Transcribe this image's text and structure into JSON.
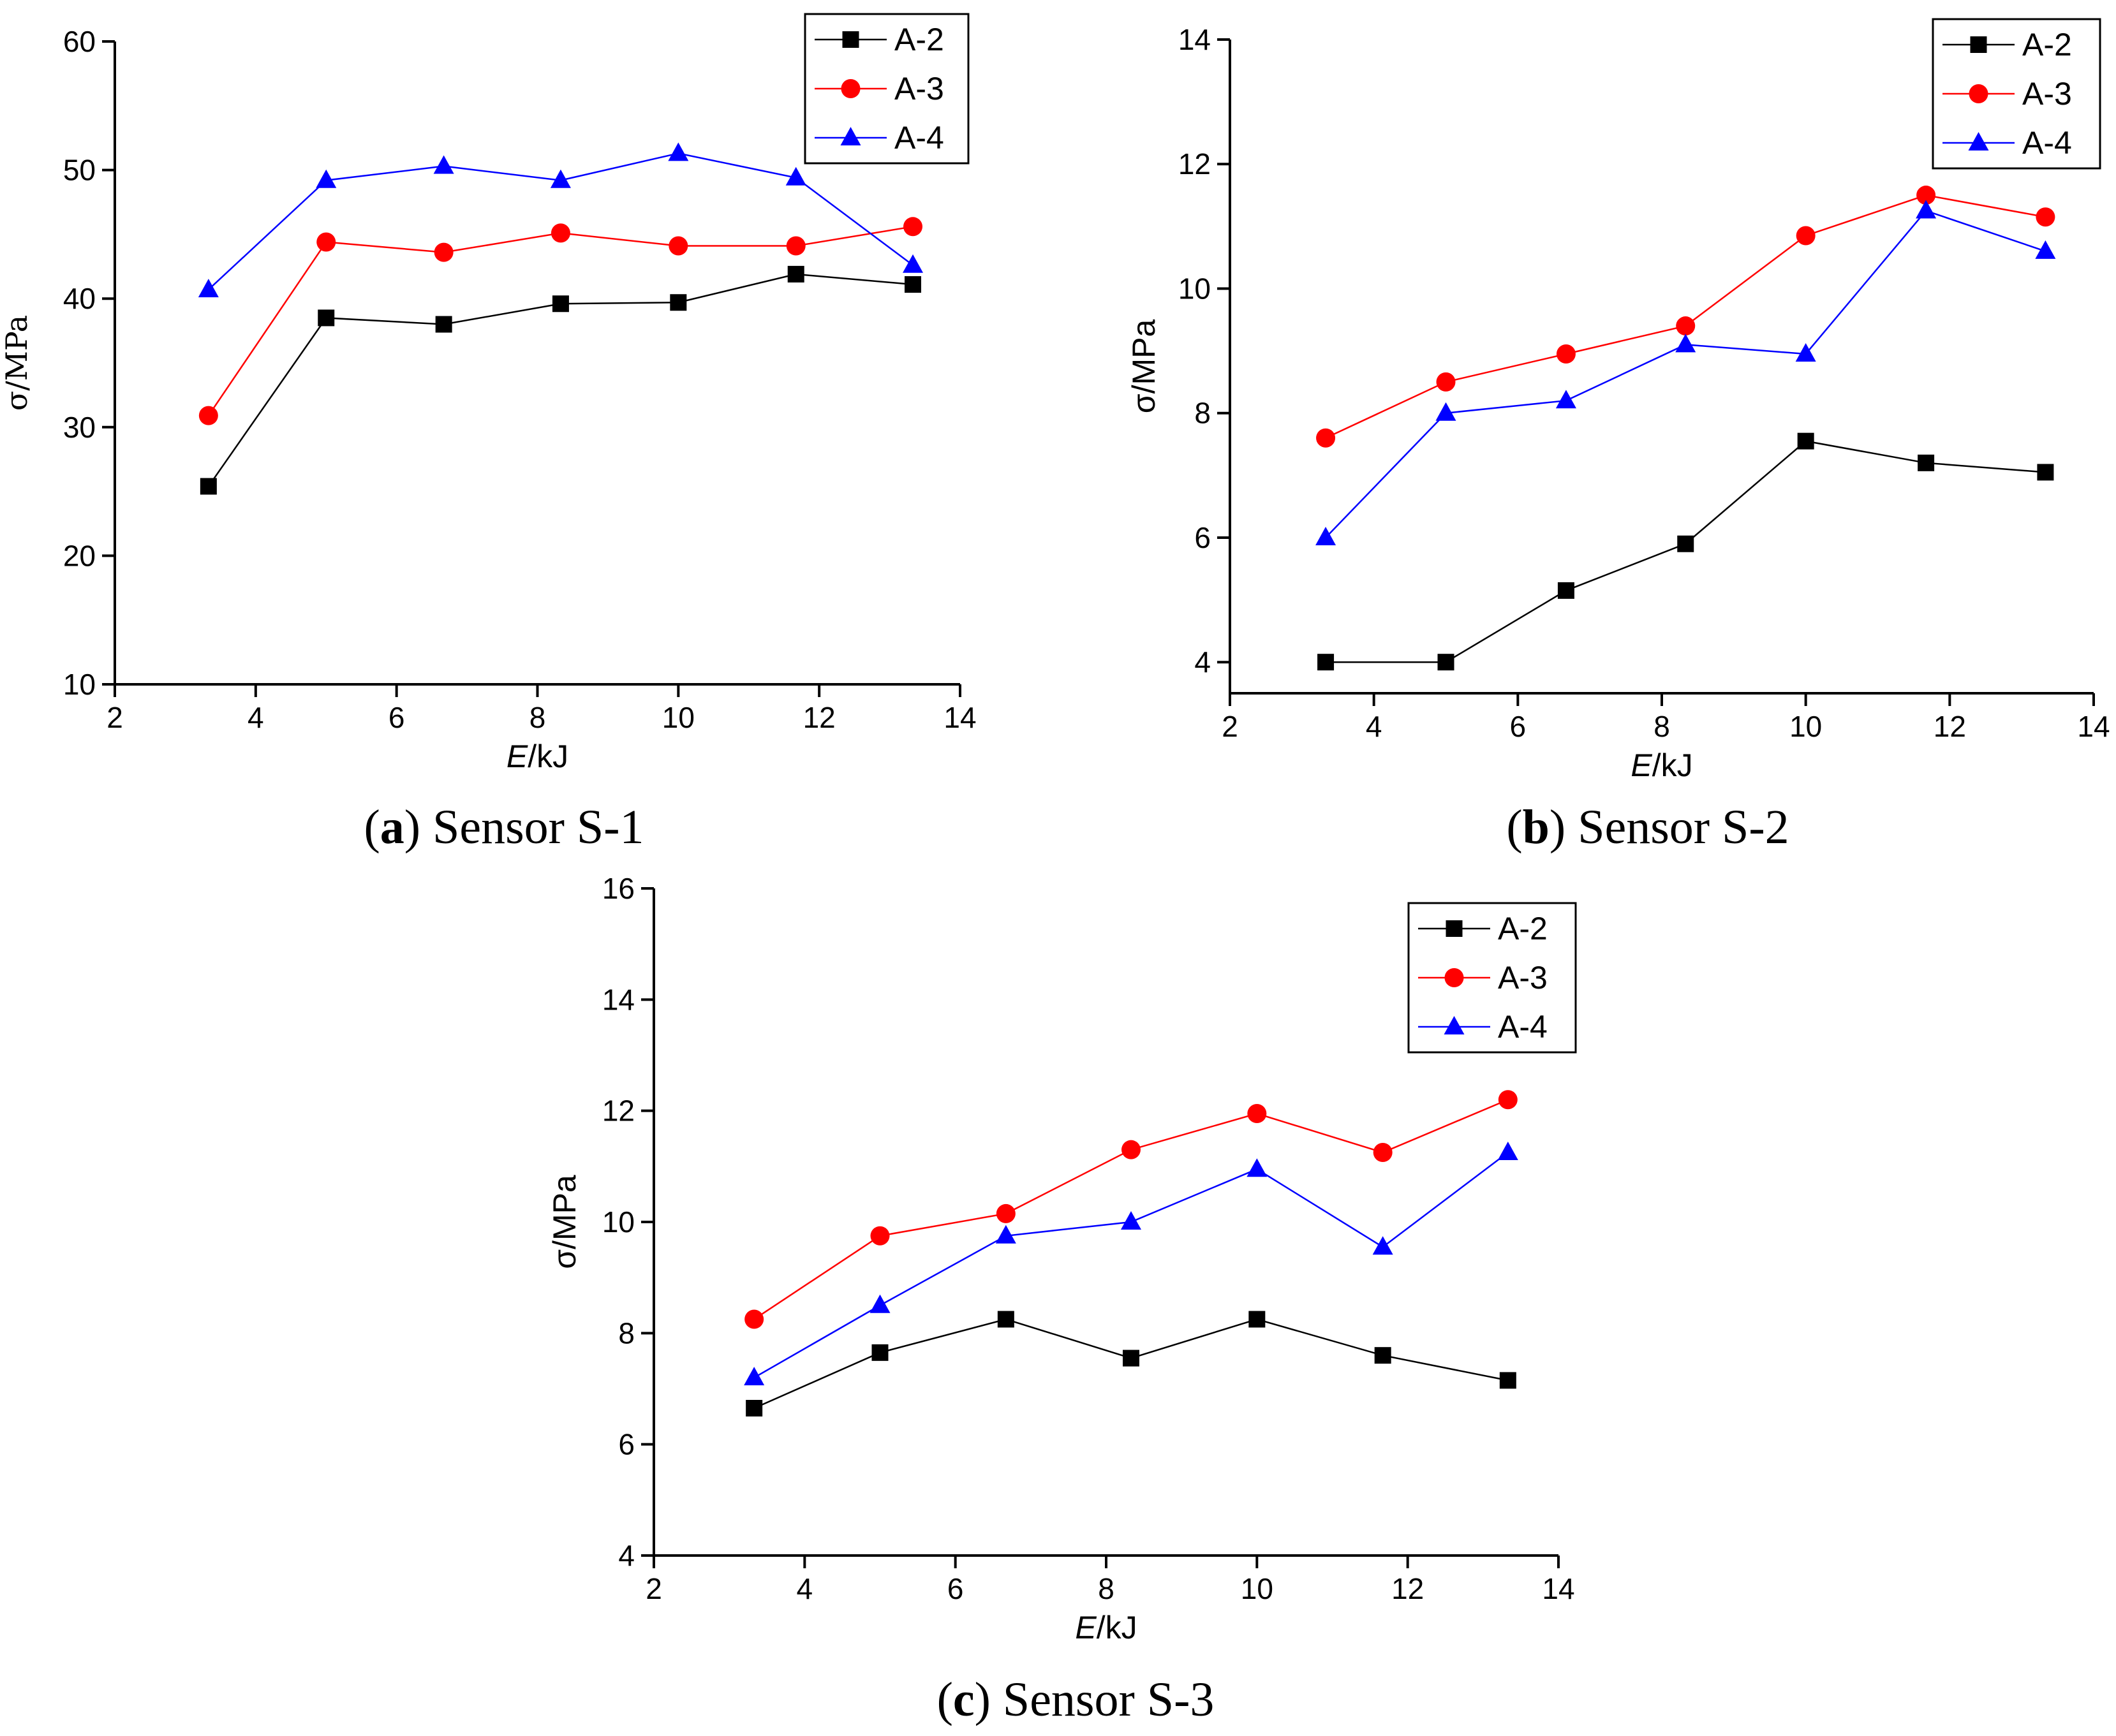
{
  "chart_data": [
    {
      "type": "line",
      "panel": "a",
      "caption_letter": "a",
      "caption_text": "Sensor S-1",
      "xlabel_italic": "E",
      "xlabel_unit": "/kJ",
      "ylabel": "σ/MPa",
      "xlim": [
        2,
        14
      ],
      "ylim": [
        10,
        60
      ],
      "xticks": [
        2,
        4,
        6,
        8,
        10,
        12,
        14
      ],
      "yticks": [
        10,
        20,
        30,
        40,
        50,
        60
      ],
      "legend_position": "top-right",
      "series": [
        {
          "name": "A-2",
          "color": "#000000",
          "marker": "square",
          "x": [
            3.33,
            5.0,
            6.67,
            8.33,
            10.0,
            11.67,
            13.33
          ],
          "y": [
            25.4,
            38.5,
            38.0,
            39.6,
            39.7,
            41.9,
            41.1
          ]
        },
        {
          "name": "A-3",
          "color": "#ff0000",
          "marker": "circle",
          "x": [
            3.33,
            5.0,
            6.67,
            8.33,
            10.0,
            11.67,
            13.33
          ],
          "y": [
            30.9,
            44.4,
            43.6,
            45.1,
            44.1,
            44.1,
            45.6
          ]
        },
        {
          "name": "A-4",
          "color": "#0000ff",
          "marker": "triangle",
          "x": [
            3.33,
            5.0,
            6.67,
            8.33,
            10.0,
            11.67,
            13.33
          ],
          "y": [
            40.7,
            49.2,
            50.3,
            49.2,
            51.3,
            49.4,
            42.6
          ]
        }
      ]
    },
    {
      "type": "line",
      "panel": "b",
      "caption_letter": "b",
      "caption_text": "Sensor S-2",
      "xlabel_italic": "E",
      "xlabel_unit": "/kJ",
      "ylabel": "σ/MPa",
      "xlim": [
        2,
        14
      ],
      "ylim": [
        3.5,
        14
      ],
      "xticks": [
        2,
        4,
        6,
        8,
        10,
        12,
        14
      ],
      "yticks": [
        4,
        6,
        8,
        10,
        12,
        14
      ],
      "legend_position": "top-right",
      "series": [
        {
          "name": "A-2",
          "color": "#000000",
          "marker": "square",
          "x": [
            3.33,
            5.0,
            6.67,
            8.33,
            10.0,
            11.67,
            13.33
          ],
          "y": [
            4.0,
            4.0,
            5.15,
            5.9,
            7.55,
            7.2,
            7.05
          ]
        },
        {
          "name": "A-3",
          "color": "#ff0000",
          "marker": "circle",
          "x": [
            3.33,
            5.0,
            6.67,
            8.33,
            10.0,
            11.67,
            13.33
          ],
          "y": [
            7.6,
            8.5,
            8.95,
            9.4,
            10.85,
            11.5,
            11.15
          ]
        },
        {
          "name": "A-4",
          "color": "#0000ff",
          "marker": "triangle",
          "x": [
            3.33,
            5.0,
            6.67,
            8.33,
            10.0,
            11.67,
            13.33
          ],
          "y": [
            6.0,
            8.0,
            8.2,
            9.1,
            8.95,
            11.25,
            10.6
          ]
        }
      ]
    },
    {
      "type": "line",
      "panel": "c",
      "caption_letter": "c",
      "caption_text": "Sensor S-3",
      "xlabel_italic": "E",
      "xlabel_unit": "/kJ",
      "ylabel": "σ/MPa",
      "xlim": [
        2,
        14
      ],
      "ylim": [
        4,
        16
      ],
      "xticks": [
        2,
        4,
        6,
        8,
        10,
        12,
        14
      ],
      "yticks": [
        4,
        6,
        8,
        10,
        12,
        14,
        16
      ],
      "legend_position": "top-right",
      "series": [
        {
          "name": "A-2",
          "color": "#000000",
          "marker": "square",
          "x": [
            3.33,
            5.0,
            6.67,
            8.33,
            10.0,
            11.67,
            13.33
          ],
          "y": [
            6.65,
            7.65,
            8.25,
            7.55,
            8.25,
            7.6,
            7.15
          ]
        },
        {
          "name": "A-3",
          "color": "#ff0000",
          "marker": "circle",
          "x": [
            3.33,
            5.0,
            6.67,
            8.33,
            10.0,
            11.67,
            13.33
          ],
          "y": [
            8.25,
            9.75,
            10.15,
            11.3,
            11.95,
            11.25,
            12.2
          ]
        },
        {
          "name": "A-4",
          "color": "#0000ff",
          "marker": "triangle",
          "x": [
            3.33,
            5.0,
            6.67,
            8.33,
            10.0,
            11.67,
            13.33
          ],
          "y": [
            7.2,
            8.5,
            9.75,
            10.0,
            10.95,
            9.55,
            11.25
          ]
        }
      ]
    }
  ]
}
